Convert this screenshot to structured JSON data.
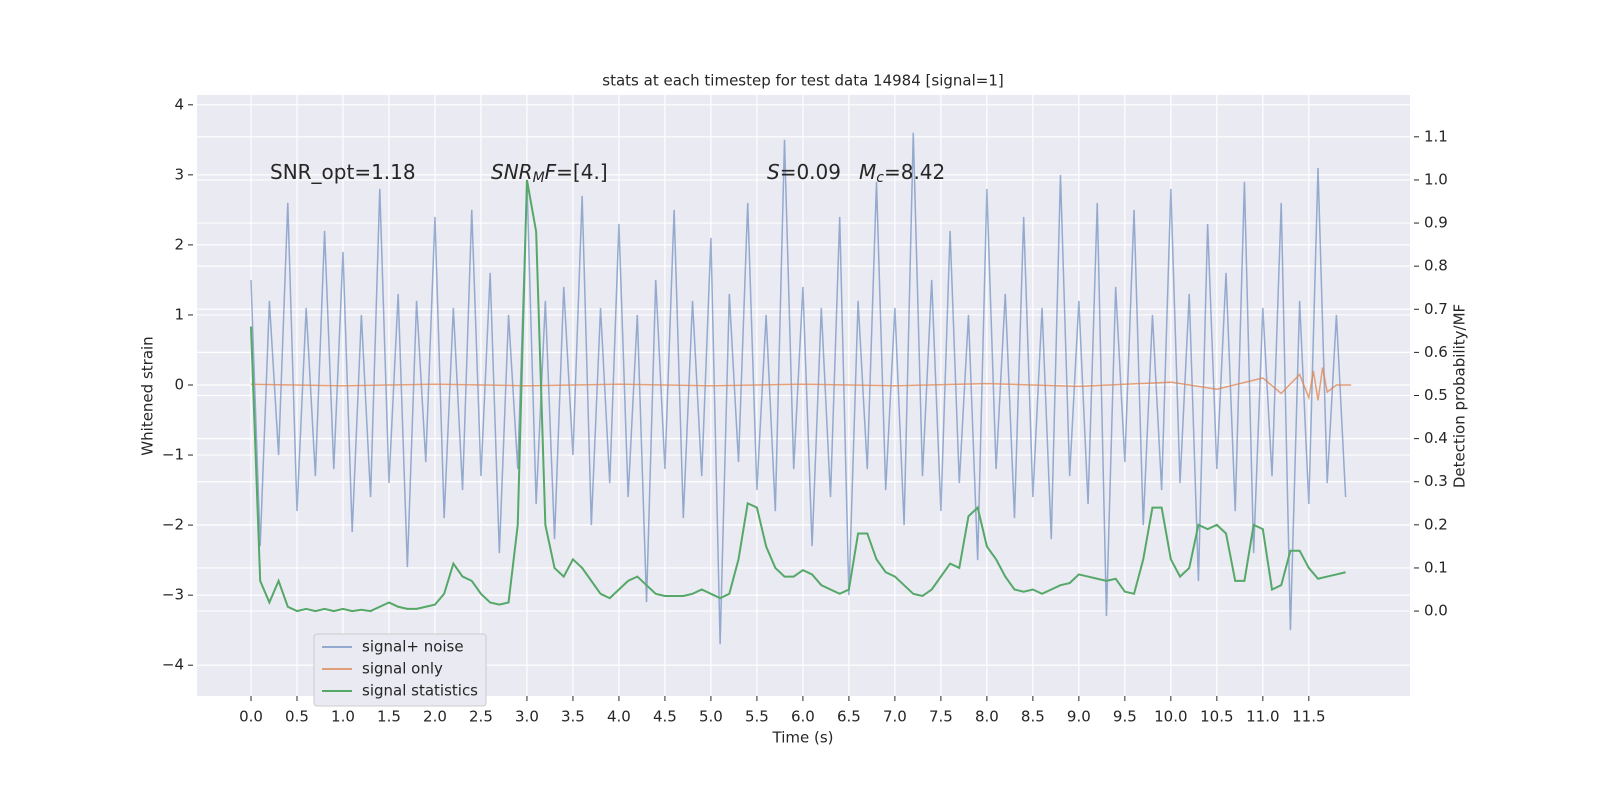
{
  "chart_data": {
    "type": "line",
    "title": "stats at each timestep for test data 14984 [signal=1]",
    "x_label": "Time (s)",
    "y_label": "Whitened strain",
    "y2_label": "Detection probability/MF",
    "annotations": [
      [
        "SNR_opt=1.18"
      ],
      [
        "SNR",
        "M",
        "F",
        "=[4.]"
      ],
      [
        "S",
        "=0.09"
      ],
      [
        "M",
        "c",
        "=8.42"
      ]
    ],
    "grid": true,
    "legend": "lower left",
    "xlim": [
      -0.587,
      12.6
    ],
    "ylim": [
      -4.44,
      4.14
    ],
    "y2lim": [
      -0.197,
      1.197
    ],
    "xticks": [
      {
        "value": 0,
        "label": "0.0"
      },
      {
        "value": 0.5,
        "label": "0.5"
      },
      {
        "value": 1,
        "label": "1.0"
      },
      {
        "value": 1.5,
        "label": "1.5"
      },
      {
        "value": 2,
        "label": "2.0"
      },
      {
        "value": 2.5,
        "label": "2.5"
      },
      {
        "value": 3,
        "label": "3.0"
      },
      {
        "value": 3.5,
        "label": "3.5"
      },
      {
        "value": 4,
        "label": "4.0"
      },
      {
        "value": 4.5,
        "label": "4.5"
      },
      {
        "value": 5,
        "label": "5.0"
      },
      {
        "value": 5.5,
        "label": "5.5"
      },
      {
        "value": 6,
        "label": "6.0"
      },
      {
        "value": 6.5,
        "label": "6.5"
      },
      {
        "value": 7,
        "label": "7.0"
      },
      {
        "value": 7.5,
        "label": "7.5"
      },
      {
        "value": 8,
        "label": "8.0"
      },
      {
        "value": 8.5,
        "label": "8.5"
      },
      {
        "value": 9,
        "label": "9.0"
      },
      {
        "value": 9.5,
        "label": "9.5"
      },
      {
        "value": 10,
        "label": "10.0"
      },
      {
        "value": 10.5,
        "label": "10.5"
      },
      {
        "value": 11,
        "label": "11.0"
      },
      {
        "value": 11.5,
        "label": "11.5"
      }
    ],
    "yticks": [
      {
        "value": -4,
        "label": "−4"
      },
      {
        "value": -3,
        "label": "−3"
      },
      {
        "value": -2,
        "label": "−2"
      },
      {
        "value": -1,
        "label": "−1"
      },
      0,
      1,
      2,
      3,
      4
    ],
    "y2ticks": [
      {
        "value": 0,
        "label": "0.0"
      },
      {
        "value": 0.1,
        "label": "0.1"
      },
      {
        "value": 0.2,
        "label": "0.2"
      },
      {
        "value": 0.3,
        "label": "0.3"
      },
      {
        "value": 0.4,
        "label": "0.4"
      },
      {
        "value": 0.5,
        "label": "0.5"
      },
      {
        "value": 0.6,
        "label": "0.6"
      },
      {
        "value": 0.7,
        "label": "0.7"
      },
      {
        "value": 0.8,
        "label": "0.8"
      },
      {
        "value": 0.9,
        "label": "0.9"
      },
      {
        "value": 1,
        "label": "1.0"
      },
      {
        "value": 1.1,
        "label": "1.1"
      }
    ],
    "x": [
      0,
      0.1,
      0.2,
      0.3,
      0.4,
      0.5,
      0.6,
      0.7,
      0.8,
      0.9,
      1,
      1.1,
      1.2,
      1.3,
      1.4,
      1.5,
      1.6,
      1.7,
      1.8,
      1.9,
      2,
      2.1,
      2.2,
      2.3,
      2.4,
      2.5,
      2.6,
      2.7,
      2.8,
      2.9,
      3,
      3.1,
      3.2,
      3.3,
      3.4,
      3.5,
      3.6,
      3.7,
      3.8,
      3.9,
      4,
      4.1,
      4.2,
      4.3,
      4.4,
      4.5,
      4.6,
      4.7,
      4.8,
      4.9,
      5,
      5.1,
      5.2,
      5.3,
      5.4,
      5.5,
      5.6,
      5.7,
      5.8,
      5.9,
      6,
      6.1,
      6.2,
      6.3,
      6.4,
      6.5,
      6.6,
      6.7,
      6.8,
      6.9,
      7,
      7.1,
      7.2,
      7.3,
      7.4,
      7.5,
      7.6,
      7.7,
      7.8,
      7.9,
      8,
      8.1,
      8.2,
      8.3,
      8.4,
      8.5,
      8.6,
      8.7,
      8.8,
      8.9,
      9,
      9.1,
      9.2,
      9.3,
      9.4,
      9.5,
      9.6,
      9.7,
      9.8,
      9.9,
      10,
      10.1,
      10.2,
      10.3,
      10.4,
      10.5,
      10.6,
      10.7,
      10.8,
      10.9,
      11,
      11.1,
      11.2,
      11.3,
      11.4,
      11.5,
      11.6,
      11.7,
      11.8,
      11.9
    ],
    "series": [
      {
        "name": "signal+ noise",
        "color": "#4c72b0",
        "values": [
          1.5,
          -2.3,
          1.2,
          -1.0,
          2.6,
          -1.8,
          1.1,
          -1.3,
          2.2,
          -1.2,
          1.9,
          -2.1,
          1.0,
          -1.6,
          2.8,
          -1.4,
          1.3,
          -2.6,
          1.2,
          -1.1,
          2.4,
          -1.9,
          1.1,
          -1.5,
          2.5,
          -1.3,
          1.6,
          -2.4,
          1.0,
          -1.2,
          2.9,
          -1.7,
          1.2,
          -2.2,
          1.4,
          -1.0,
          2.7,
          -2.0,
          1.1,
          -1.4,
          2.3,
          -1.6,
          1.0,
          -3.1,
          1.5,
          -1.2,
          2.5,
          -1.9,
          1.2,
          -1.3,
          2.1,
          -3.7,
          1.3,
          -1.1,
          2.6,
          -1.5,
          1.0,
          -1.8,
          3.5,
          -1.2,
          1.4,
          -2.3,
          1.1,
          -1.6,
          2.4,
          -3.0,
          1.2,
          -1.2,
          2.9,
          -1.5,
          1.1,
          -2.0,
          3.6,
          -1.3,
          1.5,
          -1.8,
          2.2,
          -1.4,
          1.0,
          -2.5,
          2.8,
          -1.2,
          1.3,
          -1.9,
          2.4,
          -1.6,
          1.1,
          -2.2,
          3.0,
          -1.3,
          1.2,
          -1.7,
          2.6,
          -3.3,
          1.4,
          -1.1,
          2.5,
          -2.0,
          1.0,
          -1.5,
          2.8,
          -1.4,
          1.3,
          -2.8,
          2.3,
          -1.2,
          1.6,
          -1.8,
          2.9,
          -2.4,
          1.1,
          -1.3,
          2.6,
          -3.5,
          1.2,
          -1.7,
          3.1,
          -1.4,
          1.0,
          -1.6
        ]
      },
      {
        "name": "signal only",
        "color": "#dd8452",
        "x": [
          0,
          1,
          2,
          3,
          4,
          5,
          6,
          7,
          8,
          9,
          10,
          10.5,
          11,
          11.2,
          11.4,
          11.5,
          11.55,
          11.6,
          11.65,
          11.7,
          11.8,
          11.96
        ],
        "values": [
          0.01,
          -0.01,
          0.01,
          -0.01,
          0.01,
          -0.01,
          0.01,
          -0.01,
          0.02,
          -0.02,
          0.04,
          -0.06,
          0.1,
          -0.12,
          0.15,
          -0.18,
          0.2,
          -0.22,
          0.25,
          -0.1,
          0.0,
          0.0
        ]
      },
      {
        "name": "signal statistics",
        "color": "#55a868",
        "axis": "y2",
        "values": [
          0.66,
          0.07,
          0.02,
          0.07,
          0.01,
          0.0,
          0.005,
          0.0,
          0.005,
          0.0,
          0.005,
          0.0,
          0.003,
          0.0,
          0.01,
          0.02,
          0.01,
          0.005,
          0.005,
          0.01,
          0.015,
          0.04,
          0.11,
          0.08,
          0.07,
          0.04,
          0.02,
          0.015,
          0.02,
          0.2,
          1.0,
          0.88,
          0.2,
          0.1,
          0.08,
          0.12,
          0.1,
          0.07,
          0.04,
          0.03,
          0.05,
          0.07,
          0.08,
          0.06,
          0.04,
          0.035,
          0.035,
          0.035,
          0.04,
          0.05,
          0.04,
          0.03,
          0.04,
          0.12,
          0.25,
          0.24,
          0.15,
          0.1,
          0.08,
          0.08,
          0.095,
          0.085,
          0.06,
          0.05,
          0.04,
          0.05,
          0.18,
          0.18,
          0.12,
          0.09,
          0.08,
          0.06,
          0.04,
          0.035,
          0.05,
          0.08,
          0.11,
          0.1,
          0.22,
          0.24,
          0.15,
          0.12,
          0.08,
          0.05,
          0.045,
          0.05,
          0.04,
          0.05,
          0.06,
          0.065,
          0.085,
          0.08,
          0.075,
          0.07,
          0.075,
          0.045,
          0.04,
          0.12,
          0.24,
          0.24,
          0.12,
          0.08,
          0.1,
          0.2,
          0.19,
          0.2,
          0.18,
          0.07,
          0.07,
          0.2,
          0.19,
          0.05,
          0.06,
          0.14,
          0.14,
          0.1,
          0.075,
          0.08,
          0.085,
          0.09
        ]
      }
    ]
  }
}
